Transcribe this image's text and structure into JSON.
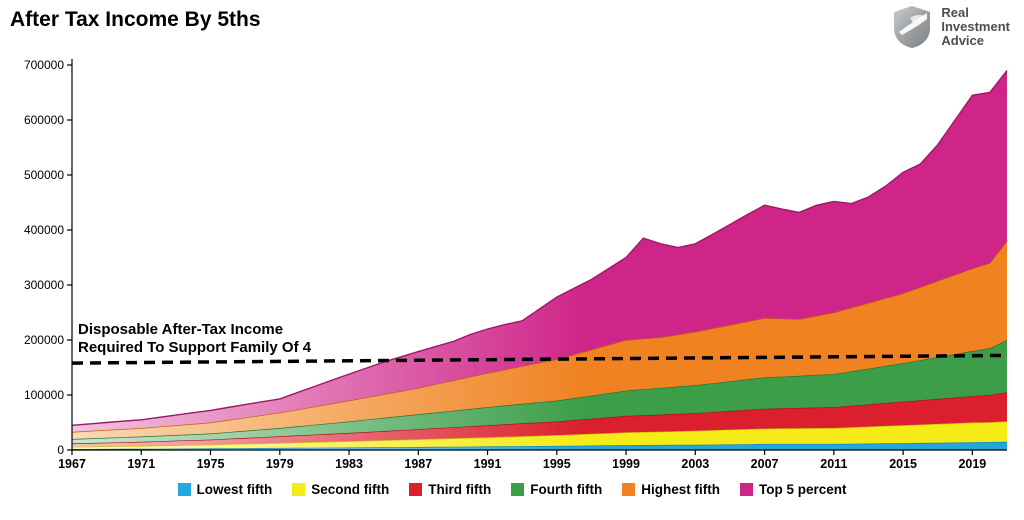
{
  "header": {
    "title": "After Tax Income By 5ths",
    "logo": {
      "line1": "Real",
      "line2": "Investment",
      "line3": "Advice"
    }
  },
  "annotation": {
    "line1": "Disposable After-Tax Income",
    "line2": "Required To Support Family Of 4"
  },
  "chart_data": {
    "type": "area",
    "stacked": true,
    "title": "After Tax Income By 5ths",
    "xlabel": "",
    "ylabel": "",
    "ylim": [
      0,
      700000
    ],
    "ytick_interval": 100000,
    "grid": false,
    "legend_position": "bottom",
    "xticks": [
      1967,
      1971,
      1975,
      1979,
      1983,
      1987,
      1991,
      1995,
      1999,
      2003,
      2007,
      2011,
      2015,
      2019
    ],
    "x": [
      1967,
      1968,
      1969,
      1970,
      1971,
      1972,
      1973,
      1974,
      1975,
      1976,
      1977,
      1978,
      1979,
      1980,
      1981,
      1982,
      1983,
      1984,
      1985,
      1986,
      1987,
      1988,
      1989,
      1990,
      1991,
      1992,
      1993,
      1994,
      1995,
      1996,
      1997,
      1998,
      1999,
      2000,
      2001,
      2002,
      2003,
      2004,
      2005,
      2006,
      2007,
      2008,
      2009,
      2010,
      2011,
      2012,
      2013,
      2014,
      2015,
      2016,
      2017,
      2018,
      2019,
      2020,
      2021
    ],
    "series": [
      {
        "name": "Lowest fifth",
        "color": "#22A7DF",
        "color_left": "#C9EAF8",
        "edge": "#1286BC",
        "values": [
          1800,
          1900,
          2000,
          2100,
          2200,
          2400,
          2600,
          2800,
          3000,
          3200,
          3400,
          3600,
          3800,
          3975,
          4150,
          4325,
          4500,
          4750,
          5000,
          5250,
          5500,
          5750,
          6000,
          6250,
          6500,
          6750,
          7000,
          7250,
          7500,
          7875,
          8250,
          8625,
          9000,
          9125,
          9250,
          9375,
          9500,
          9875,
          10250,
          10625,
          11000,
          11000,
          11000,
          11000,
          11000,
          11375,
          11750,
          12125,
          12500,
          12875,
          13250,
          13625,
          14000,
          14500,
          15000
        ]
      },
      {
        "name": "Second fifth",
        "color": "#F5EB16",
        "color_left": "#FCF9C0",
        "edge": "#CDC20B",
        "values": [
          4200,
          4475,
          4750,
          5025,
          5300,
          5725,
          6150,
          6575,
          7000,
          7550,
          8100,
          8650,
          9200,
          9775,
          10350,
          10925,
          11500,
          12125,
          12750,
          13375,
          14000,
          14625,
          15250,
          15875,
          16500,
          17250,
          18000,
          18750,
          19500,
          20375,
          21250,
          22125,
          23000,
          23625,
          24250,
          24875,
          25500,
          26125,
          26750,
          27375,
          28000,
          28250,
          28500,
          28750,
          29000,
          29875,
          30750,
          31625,
          32500,
          33375,
          34250,
          35125,
          36000,
          36000,
          37000
        ]
      },
      {
        "name": "Third fifth",
        "color": "#DB1F2E",
        "color_left": "#F6C1C5",
        "edge": "#A8141F",
        "values": [
          6000,
          6375,
          6750,
          7125,
          7500,
          7875,
          8250,
          8625,
          9000,
          9750,
          10500,
          11250,
          12000,
          12750,
          13500,
          14250,
          15000,
          15875,
          16750,
          17625,
          18500,
          19375,
          20250,
          21125,
          22000,
          22750,
          23500,
          24250,
          25000,
          26250,
          27500,
          28750,
          30000,
          30500,
          31000,
          31500,
          32000,
          33000,
          34000,
          35000,
          36000,
          36500,
          37000,
          37500,
          38000,
          39250,
          40500,
          41750,
          43000,
          44250,
          45500,
          46750,
          48000,
          49500,
          53000
        ]
      },
      {
        "name": "Fourth fifth",
        "color": "#3C9E49",
        "color_left": "#CBE7CF",
        "edge": "#277332",
        "values": [
          8000,
          8375,
          8750,
          9125,
          9500,
          9875,
          10250,
          10625,
          11000,
          12000,
          13000,
          14000,
          15000,
          16500,
          18000,
          19500,
          21000,
          22500,
          24000,
          25500,
          27000,
          28500,
          30000,
          31500,
          33000,
          34250,
          35500,
          36750,
          38000,
          40000,
          42000,
          44000,
          46000,
          47250,
          48500,
          49750,
          51000,
          52500,
          54000,
          55500,
          57000,
          57750,
          58500,
          59250,
          60000,
          62500,
          65000,
          67500,
          70000,
          73000,
          76000,
          79000,
          82000,
          85000,
          95000
        ]
      },
      {
        "name": "Highest fifth",
        "color": "#F08221",
        "color_left": "#FAD9B5",
        "edge": "#BE5E0F",
        "values": [
          13000,
          13625,
          14250,
          14875,
          15500,
          16625,
          17750,
          18875,
          20000,
          22000,
          24000,
          26000,
          28000,
          30500,
          33000,
          35500,
          38000,
          40500,
          43000,
          45500,
          48000,
          51500,
          55000,
          58500,
          62000,
          65250,
          68500,
          71750,
          75000,
          79250,
          83500,
          87750,
          92000,
          92000,
          92000,
          94500,
          97000,
          99750,
          102500,
          105250,
          108000,
          105500,
          103000,
          107500,
          112000,
          115750,
          119500,
          123250,
          127000,
          132750,
          138500,
          144250,
          150000,
          155000,
          180000
        ]
      },
      {
        "name": "Top 5 percent",
        "color": "#CF2589",
        "color_left": "#F2C3DD",
        "edge": "#9E1866",
        "values": [
          12000,
          12750,
          13500,
          14250,
          15000,
          16750,
          18500,
          20250,
          22000,
          22750,
          23500,
          24250,
          25000,
          30750,
          36500,
          42250,
          48000,
          53250,
          58500,
          62250,
          66000,
          68250,
          70500,
          76750,
          80000,
          81750,
          82500,
          97750,
          113000,
          120250,
          127500,
          138750,
          150000,
          182500,
          170000,
          158000,
          160000,
          170750,
          182500,
          194250,
          205000,
          199000,
          194000,
          201000,
          202000,
          189250,
          192500,
          203750,
          220000,
          223750,
          247500,
          281250,
          315000,
          310000,
          310000
        ]
      }
    ],
    "reference_line": {
      "label": "Disposable After-Tax Income Required To Support Family Of 4",
      "x": [
        1967,
        2021
      ],
      "values": [
        158000,
        172000
      ],
      "style": "dashed",
      "color": "#000000"
    }
  }
}
